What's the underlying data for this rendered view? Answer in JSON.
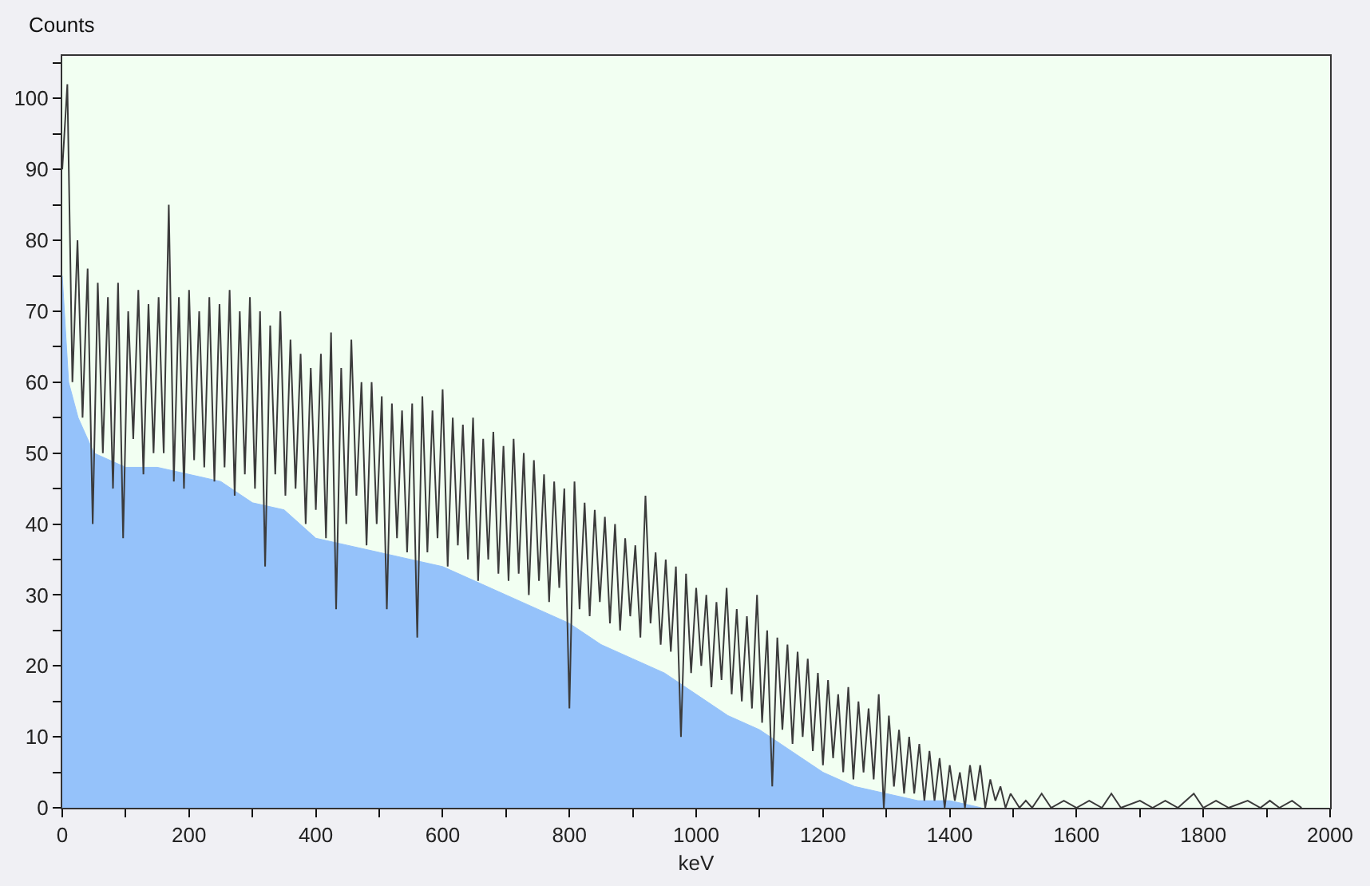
{
  "chart_data": {
    "type": "area",
    "xlabel": "keV",
    "ylabel": "Counts",
    "xlim": [
      0,
      2000
    ],
    "ylim": [
      0,
      106
    ],
    "xticks": [
      0,
      {
        "value": 100,
        "label": null
      },
      200,
      {
        "value": 300,
        "label": null
      },
      400,
      {
        "value": 500,
        "label": null
      },
      600,
      {
        "value": 700,
        "label": null
      },
      800,
      {
        "value": 900,
        "label": null
      },
      1000,
      {
        "value": 1100,
        "label": null
      },
      1200,
      {
        "value": 1300,
        "label": null
      },
      1400,
      {
        "value": 1500,
        "label": null
      },
      1600,
      {
        "value": 1700,
        "label": null
      },
      1800,
      {
        "value": 1900,
        "label": null
      },
      2000
    ],
    "yticks": [
      0,
      {
        "value": 5,
        "label": null
      },
      10,
      {
        "value": 15,
        "label": null
      },
      20,
      {
        "value": 25,
        "label": null
      },
      30,
      {
        "value": 35,
        "label": null
      },
      40,
      {
        "value": 45,
        "label": null
      },
      50,
      {
        "value": 55,
        "label": null
      },
      60,
      {
        "value": 65,
        "label": null
      },
      70,
      {
        "value": 75,
        "label": null
      },
      80,
      {
        "value": 85,
        "label": null
      },
      90,
      {
        "value": 95,
        "label": null
      },
      100,
      {
        "value": 105,
        "label": null
      }
    ],
    "series": [
      {
        "color": "#95c2fa",
        "x": [
          0,
          10,
          25,
          50,
          100,
          150,
          200,
          250,
          300,
          350,
          400,
          450,
          500,
          550,
          600,
          650,
          700,
          750,
          800,
          850,
          900,
          950,
          1000,
          1050,
          1100,
          1150,
          1200,
          1250,
          1300,
          1350,
          1400,
          1450
        ],
        "values": [
          75,
          60,
          55,
          50,
          48,
          48,
          47,
          46,
          43,
          42,
          38,
          37,
          36,
          35,
          34,
          32,
          30,
          28,
          26,
          23,
          21,
          19,
          16,
          13,
          11,
          8,
          5,
          3,
          2,
          1,
          1,
          0
        ]
      },
      {
        "type": "line",
        "color": "#3b3b3b",
        "x": [
          0,
          8,
          16,
          24,
          32,
          40,
          48,
          56,
          64,
          72,
          80,
          88,
          96,
          104,
          112,
          120,
          128,
          136,
          144,
          152,
          160,
          168,
          176,
          184,
          192,
          200,
          208,
          216,
          224,
          232,
          240,
          248,
          256,
          264,
          272,
          280,
          288,
          296,
          304,
          312,
          320,
          328,
          336,
          344,
          352,
          360,
          368,
          376,
          384,
          392,
          400,
          408,
          416,
          424,
          432,
          440,
          448,
          456,
          464,
          472,
          480,
          488,
          496,
          504,
          512,
          520,
          528,
          536,
          544,
          552,
          560,
          568,
          576,
          584,
          592,
          600,
          608,
          616,
          624,
          632,
          640,
          648,
          656,
          664,
          672,
          680,
          688,
          696,
          704,
          712,
          720,
          728,
          736,
          744,
          752,
          760,
          768,
          776,
          784,
          792,
          800,
          808,
          816,
          824,
          832,
          840,
          848,
          856,
          864,
          872,
          880,
          888,
          896,
          904,
          912,
          920,
          928,
          936,
          944,
          952,
          960,
          968,
          976,
          984,
          992,
          1000,
          1008,
          1016,
          1024,
          1032,
          1040,
          1048,
          1056,
          1064,
          1072,
          1080,
          1088,
          1096,
          1104,
          1112,
          1120,
          1128,
          1136,
          1144,
          1152,
          1160,
          1168,
          1176,
          1184,
          1192,
          1200,
          1208,
          1216,
          1224,
          1232,
          1240,
          1248,
          1256,
          1264,
          1272,
          1280,
          1288,
          1296,
          1304,
          1312,
          1320,
          1328,
          1336,
          1344,
          1352,
          1360,
          1368,
          1376,
          1384,
          1392,
          1400,
          1408,
          1416,
          1424,
          1432,
          1440,
          1448,
          1456,
          1464,
          1472,
          1480,
          1488,
          1496,
          1510,
          1520,
          1530,
          1545,
          1560,
          1580,
          1600,
          1620,
          1640,
          1655,
          1670,
          1700,
          1720,
          1740,
          1760,
          1785,
          1800,
          1820,
          1840,
          1870,
          1890,
          1905,
          1920,
          1940,
          1955
        ],
        "values": [
          90,
          102,
          60,
          80,
          55,
          76,
          40,
          74,
          50,
          72,
          45,
          74,
          38,
          70,
          52,
          73,
          47,
          71,
          50,
          72,
          50,
          85,
          46,
          72,
          45,
          73,
          49,
          70,
          48,
          72,
          46,
          71,
          48,
          73,
          44,
          70,
          47,
          72,
          45,
          70,
          34,
          68,
          47,
          70,
          44,
          66,
          45,
          64,
          40,
          62,
          42,
          64,
          38,
          67,
          28,
          62,
          40,
          66,
          44,
          60,
          37,
          60,
          40,
          58,
          28,
          57,
          38,
          56,
          36,
          57,
          24,
          58,
          36,
          56,
          38,
          59,
          34,
          55,
          37,
          54,
          35,
          55,
          32,
          52,
          35,
          53,
          33,
          51,
          32,
          52,
          33,
          50,
          30,
          49,
          32,
          47,
          29,
          46,
          31,
          45,
          14,
          46,
          28,
          43,
          27,
          42,
          29,
          41,
          26,
          40,
          25,
          38,
          27,
          37,
          24,
          44,
          26,
          36,
          23,
          35,
          22,
          34,
          10,
          33,
          19,
          31,
          20,
          30,
          17,
          29,
          18,
          31,
          16,
          28,
          15,
          27,
          14,
          30,
          12,
          25,
          3,
          24,
          11,
          23,
          9,
          22,
          10,
          21,
          8,
          19,
          6,
          18,
          7,
          16,
          5,
          17,
          4,
          15,
          5,
          14,
          4,
          16,
          0,
          13,
          3,
          11,
          2,
          10,
          2,
          9,
          1,
          8,
          1,
          7,
          0,
          6,
          1,
          5,
          0,
          6,
          1,
          6,
          0,
          4,
          1,
          3,
          0,
          2,
          0,
          1,
          0,
          2,
          0,
          1,
          0,
          1,
          0,
          2,
          0,
          1,
          0,
          1,
          0,
          2,
          0,
          1,
          0,
          1,
          0,
          1,
          0,
          1,
          0
        ]
      }
    ]
  }
}
